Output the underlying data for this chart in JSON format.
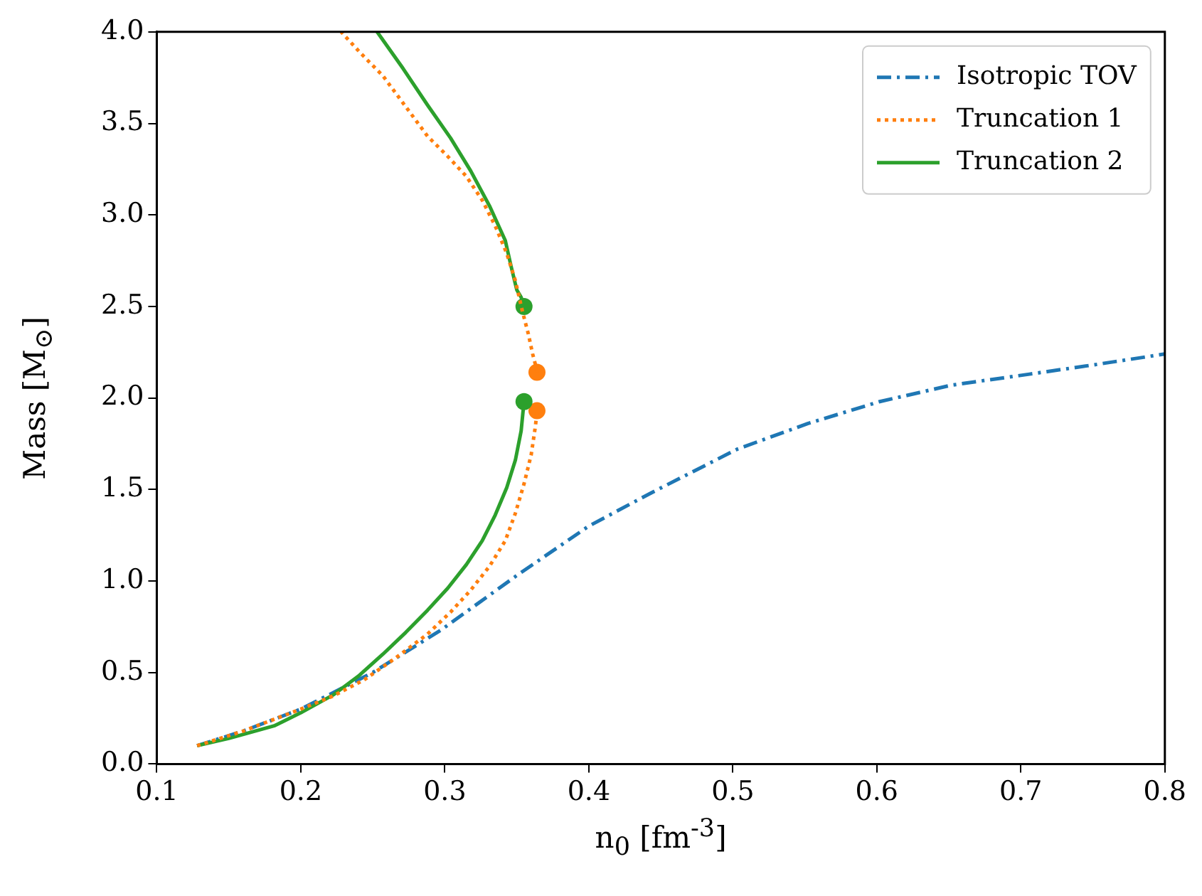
{
  "chart_data": {
    "type": "line",
    "xlabel": "n$_{0}$ [fm$^{-3}$]",
    "ylabel": "Mass [M$_{⊙}$]",
    "xlim": [
      0.1,
      0.8
    ],
    "ylim": [
      0,
      4
    ],
    "xticks": [
      0.1,
      0.2,
      0.3,
      0.4,
      0.5,
      0.6,
      0.7,
      0.8
    ],
    "yticks": [
      {
        "value": 0,
        "label": "0.0"
      },
      0.5,
      {
        "value": 1,
        "label": "1.0"
      },
      1.5,
      {
        "value": 2,
        "label": "2.0"
      },
      2.5,
      {
        "value": 3,
        "label": "3.0"
      },
      3.5,
      {
        "value": 4,
        "label": "4.0"
      }
    ],
    "grid": false,
    "legend": "top right",
    "marker": "none",
    "series": [
      {
        "name": "Isotropic TOV",
        "color": "#1f77b4",
        "line_style": "dashdot",
        "x": [
          0.128,
          0.16,
          0.2,
          0.25,
          0.297,
          0.35,
          0.4,
          0.443,
          0.503,
          0.552,
          0.602,
          0.652,
          0.706,
          0.75,
          0.8
        ],
        "values": [
          0.1,
          0.18,
          0.3,
          0.5,
          0.73,
          1.03,
          1.3,
          1.48,
          1.72,
          1.86,
          1.98,
          2.07,
          2.13,
          2.18,
          2.24
        ]
      },
      {
        "name": "Truncation 1",
        "color": "#ff7f0e",
        "line_style": "dotted",
        "x": [
          0.128,
          0.16,
          0.2,
          0.222,
          0.244,
          0.266,
          0.288,
          0.304,
          0.318,
          0.331,
          0.342,
          0.349,
          0.355,
          0.36,
          0.363,
          0.364,
          null,
          0.364,
          0.363,
          0.361,
          0.358,
          0.354,
          0.349,
          0.343,
          0.335,
          0.326,
          0.315,
          0.302,
          0.288,
          0.273,
          0.257,
          0.242,
          0.228
        ],
        "values": [
          0.1,
          0.18,
          0.3,
          0.37,
          0.46,
          0.58,
          0.71,
          0.83,
          0.95,
          1.08,
          1.22,
          1.37,
          1.53,
          1.69,
          1.85,
          1.93,
          null,
          2.14,
          2.18,
          2.24,
          2.35,
          2.47,
          2.64,
          2.79,
          2.94,
          3.08,
          3.21,
          3.32,
          3.43,
          3.59,
          3.76,
          3.88,
          4.0
        ]
      },
      {
        "name": "Truncation 2",
        "color": "#2ca02c",
        "line_style": "solid",
        "x": [
          0.128,
          0.15,
          0.182,
          0.2,
          0.223,
          0.24,
          0.257,
          0.273,
          0.288,
          0.302,
          0.315,
          0.326,
          0.335,
          0.343,
          0.349,
          0.353,
          0.355,
          null,
          0.355,
          0.353,
          0.35,
          0.346,
          0.342,
          0.331,
          0.318,
          0.304,
          0.288,
          0.271,
          0.253
        ],
        "values": [
          0.1,
          0.14,
          0.21,
          0.28,
          0.38,
          0.48,
          0.6,
          0.72,
          0.84,
          0.96,
          1.09,
          1.22,
          1.36,
          1.51,
          1.66,
          1.82,
          1.98,
          null,
          2.5,
          2.55,
          2.59,
          2.72,
          2.86,
          3.05,
          3.24,
          3.42,
          3.6,
          3.8,
          4.0
        ]
      },
      {
        "type": "scatter",
        "color": "#ff7f0e",
        "marker": "circle",
        "x": [
          0.364,
          0.364
        ],
        "values": [
          1.93,
          2.14
        ]
      },
      {
        "type": "scatter",
        "color": "#2ca02c",
        "marker": "circle",
        "x": [
          0.355,
          0.355
        ],
        "values": [
          1.98,
          2.5
        ]
      }
    ]
  }
}
